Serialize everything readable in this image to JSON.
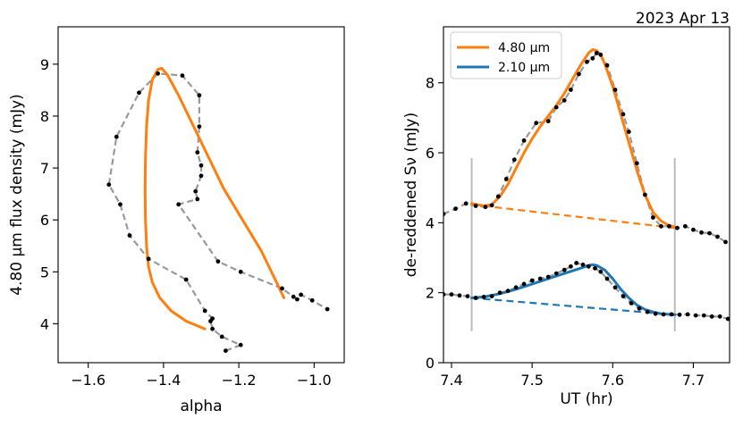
{
  "figure_date": "2023 Apr 13",
  "colors": {
    "orange": "#ff7f0e",
    "blue": "#1f77b4",
    "gray": "#999999",
    "dots": "#000000",
    "bars": "#bbbbbb"
  },
  "chart_data": [
    {
      "type": "scatter",
      "panel": "left",
      "xlabel": "alpha",
      "ylabel": "4.80 µm flux density (mJy)",
      "xlim": [
        -1.68,
        -0.92
      ],
      "ylim": [
        3.25,
        9.72
      ],
      "xticks": [
        -1.6,
        -1.4,
        -1.2,
        -1.0
      ],
      "xtick_labels": [
        "−1.6",
        "−1.4",
        "−1.2",
        "−1.0"
      ],
      "yticks": [
        4,
        5,
        6,
        7,
        8,
        9
      ],
      "ytick_labels": [
        "4",
        "5",
        "6",
        "7",
        "8",
        "9"
      ],
      "observed": {
        "name": "observed (dashed gray with points)",
        "x": [
          -1.235,
          -1.195,
          -1.245,
          -1.27,
          -1.275,
          -1.27,
          -1.29,
          -1.34,
          -1.44,
          -1.49,
          -1.515,
          -1.545,
          -1.525,
          -1.465,
          -1.415,
          -1.35,
          -1.305,
          -1.305,
          -1.31,
          -1.3,
          -1.3,
          -1.315,
          -1.31,
          -1.36,
          -1.255,
          -1.195,
          -1.085,
          -1.055,
          -1.045,
          -1.035,
          -1.005,
          -0.965
        ],
        "y": [
          3.48,
          3.59,
          3.75,
          3.9,
          4.05,
          4.1,
          4.25,
          4.85,
          5.25,
          5.7,
          6.3,
          6.68,
          7.6,
          8.45,
          8.82,
          8.78,
          8.4,
          7.8,
          7.3,
          7.05,
          6.85,
          6.55,
          6.4,
          6.3,
          5.2,
          5.0,
          4.68,
          4.52,
          4.47,
          4.56,
          4.45,
          4.28
        ]
      },
      "model": {
        "name": "4.80 µm model",
        "color": "orange",
        "x": [
          -1.08,
          -1.1,
          -1.14,
          -1.19,
          -1.24,
          -1.28,
          -1.32,
          -1.36,
          -1.39,
          -1.405,
          -1.415,
          -1.43,
          -1.44,
          -1.445,
          -1.448,
          -1.449,
          -1.448,
          -1.445,
          -1.44,
          -1.43,
          -1.41,
          -1.38,
          -1.34,
          -1.29
        ],
        "y": [
          4.5,
          4.8,
          5.4,
          6.0,
          6.6,
          7.2,
          7.8,
          8.4,
          8.8,
          8.92,
          8.9,
          8.7,
          8.3,
          7.8,
          7.2,
          6.6,
          6.0,
          5.5,
          5.1,
          4.8,
          4.5,
          4.25,
          4.05,
          3.9
        ]
      }
    },
    {
      "type": "line",
      "panel": "right",
      "xlabel": "UT (hr)",
      "ylabel": "de-reddened  Sν (mJy)",
      "xlim": [
        7.39,
        7.745
      ],
      "ylim": [
        0,
        9.6
      ],
      "xticks": [
        7.4,
        7.5,
        7.6,
        7.7
      ],
      "xtick_labels": [
        "7.4",
        "7.5",
        "7.6",
        "7.7"
      ],
      "yticks": [
        0,
        2,
        4,
        6,
        8
      ],
      "ytick_labels": [
        "0",
        "2",
        "4",
        "6",
        "8"
      ],
      "legend_position": "top-left",
      "legend": [
        "4.80 µm",
        "2.10 µm"
      ],
      "vertical_markers": {
        "x": [
          7.425,
          7.677
        ],
        "y_range": [
          0.9,
          5.85
        ]
      },
      "series": [
        {
          "name": "4.80 µm observed",
          "x": [
            7.39,
            7.405,
            7.418,
            7.43,
            7.442,
            7.45,
            7.458,
            7.468,
            7.478,
            7.49,
            7.505,
            7.52,
            7.53,
            7.54,
            7.548,
            7.558,
            7.568,
            7.575,
            7.58,
            7.585,
            7.593,
            7.603,
            7.613,
            7.62,
            7.63,
            7.64,
            7.65,
            7.66,
            7.67,
            7.68,
            7.69,
            7.7,
            7.71,
            7.72,
            7.73,
            7.74
          ],
          "y": [
            4.25,
            4.4,
            4.55,
            4.48,
            4.45,
            4.5,
            4.75,
            5.25,
            5.8,
            6.35,
            6.85,
            6.9,
            7.3,
            7.5,
            7.8,
            8.25,
            8.6,
            8.7,
            8.85,
            8.8,
            8.5,
            7.8,
            7.1,
            6.6,
            5.7,
            4.8,
            4.15,
            3.9,
            3.9,
            3.85,
            3.9,
            3.8,
            3.72,
            3.7,
            3.6,
            3.45
          ]
        },
        {
          "name": "4.80 µm model",
          "color": "orange",
          "x": [
            7.425,
            7.44,
            7.45,
            7.46,
            7.47,
            7.48,
            7.49,
            7.5,
            7.51,
            7.52,
            7.53,
            7.54,
            7.55,
            7.56,
            7.57,
            7.575,
            7.58,
            7.585,
            7.59,
            7.6,
            7.61,
            7.62,
            7.63,
            7.64,
            7.65,
            7.66,
            7.67,
            7.677
          ],
          "y": [
            4.55,
            4.48,
            4.52,
            4.75,
            5.1,
            5.55,
            6.0,
            6.4,
            6.75,
            7.05,
            7.35,
            7.7,
            8.1,
            8.5,
            8.85,
            8.95,
            8.92,
            8.8,
            8.55,
            7.9,
            7.1,
            6.3,
            5.5,
            4.8,
            4.3,
            4.05,
            3.92,
            3.88
          ]
        },
        {
          "name": "4.80 µm baseline",
          "color": "orange",
          "dashed": true,
          "x": [
            7.425,
            7.677
          ],
          "y": [
            4.52,
            3.85
          ]
        },
        {
          "name": "2.10 µm observed",
          "x": [
            7.39,
            7.4,
            7.41,
            7.42,
            7.43,
            7.44,
            7.45,
            7.46,
            7.47,
            7.48,
            7.49,
            7.5,
            7.51,
            7.52,
            7.53,
            7.54,
            7.548,
            7.555,
            7.563,
            7.57,
            7.578,
            7.585,
            7.593,
            7.603,
            7.613,
            7.623,
            7.633,
            7.643,
            7.653,
            7.663,
            7.673,
            7.683,
            7.693,
            7.703,
            7.713,
            7.723,
            7.733,
            7.743
          ],
          "y": [
            1.95,
            1.95,
            1.92,
            1.9,
            1.85,
            1.88,
            1.9,
            2.0,
            2.05,
            2.15,
            2.25,
            2.35,
            2.4,
            2.45,
            2.55,
            2.65,
            2.75,
            2.85,
            2.8,
            2.75,
            2.7,
            2.6,
            2.4,
            2.15,
            1.9,
            1.7,
            1.55,
            1.45,
            1.4,
            1.38,
            1.38,
            1.37,
            1.38,
            1.35,
            1.35,
            1.32,
            1.32,
            1.25
          ]
        },
        {
          "name": "2.10 µm model",
          "color": "blue",
          "x": [
            7.425,
            7.44,
            7.46,
            7.48,
            7.5,
            7.52,
            7.54,
            7.56,
            7.57,
            7.575,
            7.58,
            7.59,
            7.6,
            7.61,
            7.62,
            7.63,
            7.64,
            7.65,
            7.66,
            7.67,
            7.677
          ],
          "y": [
            1.85,
            1.88,
            1.97,
            2.1,
            2.25,
            2.4,
            2.55,
            2.7,
            2.78,
            2.8,
            2.78,
            2.65,
            2.4,
            2.1,
            1.85,
            1.65,
            1.52,
            1.45,
            1.4,
            1.38,
            1.37
          ]
        },
        {
          "name": "2.10 µm baseline",
          "color": "blue",
          "dashed": true,
          "x": [
            7.425,
            7.677
          ],
          "y": [
            1.85,
            1.37
          ]
        }
      ]
    }
  ]
}
